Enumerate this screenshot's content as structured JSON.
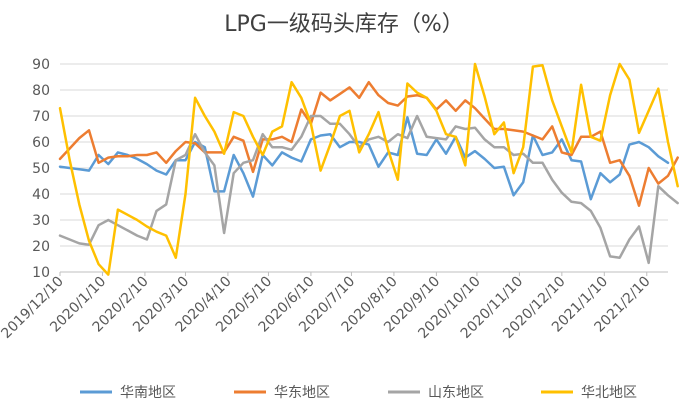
{
  "chart_data": {
    "type": "line",
    "title": "LPG一级码头库存（%）",
    "xlabel": "",
    "ylabel": "",
    "ylim": [
      10,
      90
    ],
    "yticks": [
      10,
      20,
      30,
      40,
      50,
      60,
      70,
      80,
      90
    ],
    "grid": true,
    "legend_position": "bottom",
    "x_tick_labels": [
      "2019/12/10",
      "2020/1/10",
      "2020/2/10",
      "2020/3/10",
      "2020/4/10",
      "2020/5/10",
      "2020/6/10",
      "2020/7/10",
      "2020/8/10",
      "2020/9/10",
      "2020/10/10",
      "2020/11/10",
      "2020/12/10",
      "2021/1/10",
      "2021/2/10"
    ],
    "x_tick_index": [
      0,
      4.4,
      8.8,
      13,
      17.4,
      21.6,
      26,
      30.2,
      34.6,
      39,
      43.2,
      47.6,
      52,
      56.4,
      60.8
    ],
    "series": [
      {
        "name": "华南地区",
        "color": "#5B9BD5",
        "values": [
          50.5,
          50,
          49.5,
          49,
          55,
          51.5,
          56,
          55,
          53.5,
          51.5,
          49,
          47.5,
          53,
          53,
          60,
          58,
          41,
          41,
          55,
          48,
          39,
          55,
          51,
          56,
          54,
          52.5,
          61,
          62.5,
          63,
          58,
          60,
          60,
          59,
          50.5,
          56,
          55,
          69.5,
          55.5,
          55,
          61,
          55.5,
          62,
          54,
          56.5,
          53.5,
          50,
          50.5,
          39.5,
          44.5,
          62.5,
          55,
          56,
          61,
          53,
          52.5,
          38,
          48,
          44.5,
          47.5,
          59,
          60,
          58,
          54.5,
          52
        ]
      },
      {
        "name": "华东地区",
        "color": "#ED7D31",
        "values": [
          53.5,
          57.5,
          61.5,
          64.5,
          52,
          54,
          54.5,
          54.5,
          55,
          55,
          56,
          52,
          56.5,
          60,
          59.5,
          56,
          56,
          56,
          62,
          60.5,
          48.5,
          61,
          61,
          62,
          60,
          72.5,
          67,
          79,
          76,
          78.5,
          81,
          77,
          83,
          78,
          75,
          74,
          77.5,
          78,
          77,
          72.5,
          76,
          72,
          76,
          73,
          69,
          65,
          65,
          64.5,
          64,
          62.5,
          61,
          66,
          56,
          55,
          62,
          62,
          64,
          52,
          53,
          47,
          35.5,
          50,
          44,
          47,
          54
        ]
      },
      {
        "name": "山东地区",
        "color": "#A5A5A5",
        "values": [
          24,
          22.5,
          21,
          20.5,
          28,
          30,
          28,
          26,
          24,
          22.5,
          33.5,
          36,
          53,
          55,
          63,
          56,
          51,
          25,
          48,
          52,
          53,
          63,
          58,
          58,
          57,
          62,
          70,
          70,
          67,
          67,
          63,
          58,
          61,
          62,
          60,
          63,
          61.5,
          70,
          62,
          61.5,
          61,
          66,
          65,
          65.5,
          61,
          58,
          58,
          55,
          55.5,
          52,
          52,
          45.5,
          40.5,
          37,
          36.5,
          33.5,
          27,
          16,
          15.5,
          22.5,
          27.5,
          13.5,
          43,
          39.5,
          36.5
        ]
      },
      {
        "name": "华北地区",
        "color": "#FFC000",
        "values": [
          73,
          53,
          36,
          22,
          13,
          9,
          34,
          32,
          30,
          27.5,
          25.5,
          24,
          15.5,
          40,
          77,
          70,
          64,
          55.5,
          71.5,
          70,
          62,
          55,
          64,
          66,
          83,
          77,
          67,
          49,
          59,
          70,
          72,
          56,
          63,
          71.5,
          57,
          45.5,
          82.5,
          79,
          77,
          72,
          63,
          62,
          51,
          90,
          77.5,
          63,
          67.5,
          48,
          58,
          89,
          89.5,
          76,
          66,
          56,
          82,
          62,
          60.5,
          78,
          90,
          84,
          63.5,
          72,
          80.5,
          60,
          43
        ]
      }
    ]
  }
}
